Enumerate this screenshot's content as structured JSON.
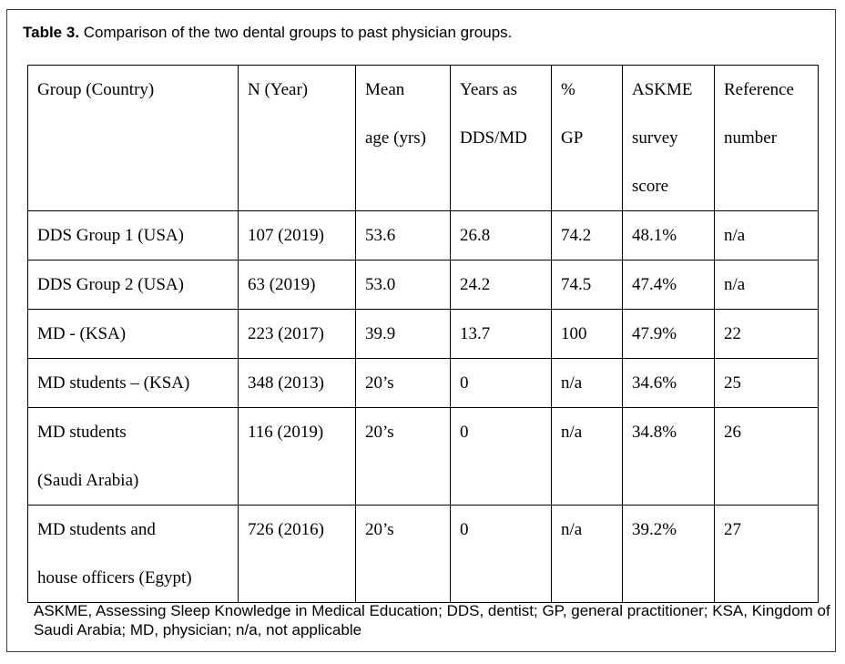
{
  "caption": {
    "label": "Table 3.",
    "text": " Comparison of the two dental groups to past physician groups."
  },
  "table": {
    "headers": [
      [
        "Group (Country)"
      ],
      [
        "N  (Year)"
      ],
      [
        "Mean",
        "age (yrs)"
      ],
      [
        "Years as",
        "DDS/MD"
      ],
      [
        "%",
        "GP"
      ],
      [
        "ASKME",
        "survey",
        "score"
      ],
      [
        "Reference",
        "number"
      ]
    ],
    "rows": [
      [
        [
          "DDS Group 1 (USA)"
        ],
        [
          "107 (2019)"
        ],
        [
          "53.6"
        ],
        [
          "26.8"
        ],
        [
          "74.2"
        ],
        [
          "48.1%"
        ],
        [
          "n/a"
        ]
      ],
      [
        [
          "DDS Group 2 (USA)"
        ],
        [
          "63 (2019)"
        ],
        [
          "53.0"
        ],
        [
          "24.2"
        ],
        [
          "74.5"
        ],
        [
          "47.4%"
        ],
        [
          "n/a"
        ]
      ],
      [
        [
          "MD  -  (KSA)"
        ],
        [
          "223 (2017)"
        ],
        [
          "39.9"
        ],
        [
          "13.7"
        ],
        [
          "100"
        ],
        [
          "47.9%"
        ],
        [
          "22"
        ]
      ],
      [
        [
          "MD students – (KSA)"
        ],
        [
          "348 (2013)"
        ],
        [
          "20’s"
        ],
        [
          "0"
        ],
        [
          "n/a"
        ],
        [
          "34.6%"
        ],
        [
          "25"
        ]
      ],
      [
        [
          "MD students",
          "(Saudi Arabia)"
        ],
        [
          "116 (2019)"
        ],
        [
          "20’s"
        ],
        [
          "0"
        ],
        [
          "n/a"
        ],
        [
          "34.8%"
        ],
        [
          "26"
        ]
      ],
      [
        [
          "MD students and",
          "house officers (Egypt)"
        ],
        [
          "726 (2016)"
        ],
        [
          "20’s"
        ],
        [
          "0"
        ],
        [
          "n/a"
        ],
        [
          "39.2%"
        ],
        [
          "27"
        ]
      ]
    ]
  },
  "footnote": "ASKME, Assessing Sleep Knowledge in Medical Education; DDS, dentist; GP, general practitioner; KSA, Kingdom of Saudi Arabia; MD, physician; n/a, not applicable"
}
